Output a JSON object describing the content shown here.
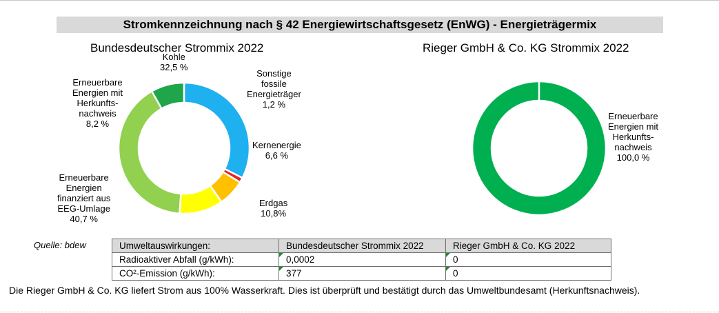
{
  "heading": "Stromkennzeichnung nach § 42 Energiewirtschaftsgesetz (EnWG) - Energieträgermix",
  "chart_data": [
    {
      "type": "pie",
      "title": "Bundesdeutscher Strommix 2022",
      "donut": true,
      "categories": [
        "Kohle",
        "Sonstige fossile Energieträger",
        "Kernenergie",
        "Erdgas",
        "Erneuerbare Energien finanziert aus EEG-Umlage",
        "Erneuerbare Energien mit Herkunftsnachweis"
      ],
      "values": [
        32.5,
        1.2,
        6.6,
        10.8,
        40.7,
        8.2
      ],
      "labels": [
        [
          "Kohle",
          "32,5 %"
        ],
        [
          "Sonstige",
          "fossile",
          "Energieträger",
          "1,2 %"
        ],
        [
          "Kernenergie",
          "6,6 %"
        ],
        [
          "Erdgas",
          "10,8%"
        ],
        [
          "Erneuerbare",
          "Energien",
          "finanziert aus",
          "EEG-Umlage",
          "40,7 %"
        ],
        [
          "Erneuerbare",
          "Energien mit",
          "Herkunfts-",
          "nachweis",
          "8,2 %"
        ]
      ],
      "colors": [
        "#1fb0f0",
        "#e52421",
        "#ffc000",
        "#ffff00",
        "#92d050",
        "#1fa64a"
      ]
    },
    {
      "type": "pie",
      "title": "Rieger GmbH & Co. KG Strommix 2022",
      "donut": true,
      "categories": [
        "Erneuerbare Energien mit Herkunftsnachweis"
      ],
      "values": [
        100.0
      ],
      "labels": [
        [
          "Erneuerbare",
          "Energien mit",
          "Herkunfts-",
          "nachweis",
          "100,0 %"
        ]
      ],
      "colors": [
        "#00b050"
      ]
    }
  ],
  "source": "Quelle: bdew",
  "table": {
    "header": [
      "Umweltauswirkungen:",
      "Bundesdeutscher Strommix 2022",
      "Rieger GmbH & Co. KG 2022"
    ],
    "rows": [
      [
        "Radioaktiver Abfall (g/kWh):",
        "0,0002",
        "0"
      ],
      [
        "CO²-Emission (g/kWh):",
        "377",
        "0"
      ]
    ]
  },
  "footnote": "Die Rieger GmbH & Co. KG liefert Strom aus 100% Wasserkraft. Dies ist überprüft und bestätigt durch das Umweltbundesamt (Herkunftsnachweis)."
}
